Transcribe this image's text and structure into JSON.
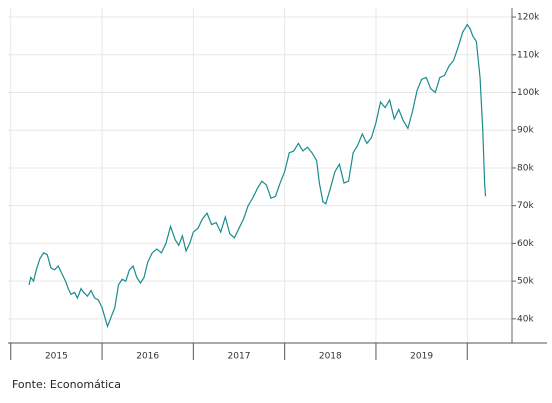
{
  "chart_data": {
    "type": "line",
    "source": "Fonte: Economática",
    "x": [
      2015.2,
      2015.22,
      2015.25,
      2015.28,
      2015.32,
      2015.36,
      2015.4,
      2015.44,
      2015.48,
      2015.52,
      2015.56,
      2015.6,
      2015.63,
      2015.66,
      2015.7,
      2015.73,
      2015.77,
      2015.8,
      2015.84,
      2015.88,
      2015.92,
      2015.96,
      2016.0,
      2016.03,
      2016.06,
      2016.1,
      2016.14,
      2016.18,
      2016.22,
      2016.26,
      2016.3,
      2016.34,
      2016.38,
      2016.42,
      2016.46,
      2016.5,
      2016.55,
      2016.6,
      2016.65,
      2016.7,
      2016.75,
      2016.8,
      2016.84,
      2016.88,
      2016.92,
      2016.96,
      2017.0,
      2017.05,
      2017.1,
      2017.15,
      2017.2,
      2017.25,
      2017.3,
      2017.35,
      2017.4,
      2017.45,
      2017.5,
      2017.55,
      2017.6,
      2017.65,
      2017.7,
      2017.75,
      2017.8,
      2017.85,
      2017.9,
      2017.95,
      2018.0,
      2018.05,
      2018.1,
      2018.15,
      2018.2,
      2018.25,
      2018.3,
      2018.35,
      2018.38,
      2018.42,
      2018.45,
      2018.5,
      2018.55,
      2018.6,
      2018.65,
      2018.7,
      2018.75,
      2018.8,
      2018.85,
      2018.9,
      2018.95,
      2019.0,
      2019.05,
      2019.1,
      2019.15,
      2019.2,
      2019.25,
      2019.3,
      2019.35,
      2019.4,
      2019.45,
      2019.5,
      2019.55,
      2019.6,
      2019.65,
      2019.7,
      2019.75,
      2019.8,
      2019.85,
      2019.9,
      2019.95,
      2020.0,
      2020.03,
      2020.06,
      2020.1,
      2020.14,
      2020.17,
      2020.19,
      2020.2
    ],
    "series": [
      {
        "color": "#1b8c8c",
        "values": [
          49000,
          51000,
          50000,
          53000,
          56000,
          57500,
          57000,
          53500,
          53000,
          54000,
          52000,
          50000,
          48000,
          46500,
          47000,
          45500,
          48000,
          47000,
          46000,
          47500,
          45500,
          45000,
          43000,
          40500,
          38000,
          40500,
          43000,
          49000,
          50500,
          50000,
          53000,
          54000,
          51000,
          49500,
          51000,
          55000,
          57500,
          58500,
          57500,
          60000,
          64500,
          61000,
          59500,
          62000,
          58000,
          60000,
          63000,
          64000,
          66500,
          68000,
          65000,
          65500,
          63000,
          67000,
          62500,
          61500,
          64000,
          66500,
          70000,
          72000,
          74500,
          76500,
          75500,
          72000,
          72500,
          76000,
          79000,
          84000,
          84500,
          86500,
          84500,
          85500,
          84000,
          82000,
          76000,
          71000,
          70500,
          74500,
          79000,
          81000,
          76000,
          76500,
          84000,
          86000,
          89000,
          86500,
          88000,
          92000,
          97500,
          96000,
          98000,
          93000,
          95500,
          92500,
          90500,
          95000,
          100500,
          103500,
          104000,
          101000,
          100000,
          104000,
          104500,
          107000,
          108500,
          112000,
          116000,
          118000,
          117000,
          115000,
          113500,
          104000,
          90000,
          76000,
          72500
        ]
      }
    ],
    "xlim": [
      2014.97,
      2020.49
    ],
    "xticks": [
      {
        "value": 2015.5,
        "label": "2015"
      },
      {
        "value": 2016.5,
        "label": "2016"
      },
      {
        "value": 2017.5,
        "label": "2017"
      },
      {
        "value": 2018.5,
        "label": "2018"
      },
      {
        "value": 2019.5,
        "label": "2019"
      }
    ],
    "xgrid": [
      2015,
      2016,
      2017,
      2018,
      2019,
      2020
    ],
    "ylim": [
      33600,
      122400
    ],
    "yticks": [
      {
        "value": 40000,
        "label": "40k"
      },
      {
        "value": 50000,
        "label": "50k"
      },
      {
        "value": 60000,
        "label": "60k"
      },
      {
        "value": 70000,
        "label": "70k"
      },
      {
        "value": 80000,
        "label": "80k"
      },
      {
        "value": 90000,
        "label": "90k"
      },
      {
        "value": 100000,
        "label": "100k"
      },
      {
        "value": 110000,
        "label": "110k"
      },
      {
        "value": 120000,
        "label": "120k"
      }
    ],
    "grid": true
  }
}
